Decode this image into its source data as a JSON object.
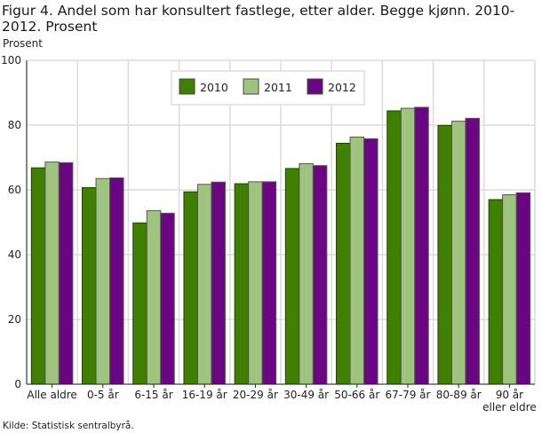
{
  "chart_data": {
    "type": "bar",
    "title": "Figur 4. Andel som har konsultert fastlege, etter alder. Begge kjønn. 2010-2012. Prosent",
    "ylabel": "Prosent",
    "ylim": [
      0,
      100
    ],
    "yticks": [
      0,
      20,
      40,
      60,
      80,
      100
    ],
    "grid": true,
    "legend_position": "top-center",
    "categories": [
      "Alle aldre",
      "0-5 år",
      "6-15 år",
      "16-19 år",
      "20-29 år",
      "30-49 år",
      "50-66 år",
      "67-79 år",
      "80-89 år",
      "90 år\neller eldre"
    ],
    "series": [
      {
        "name": "2010",
        "color": "#3f8000",
        "values": [
          66.8,
          60.7,
          49.8,
          59.4,
          61.9,
          66.6,
          74.4,
          84.4,
          79.9,
          57.0
        ]
      },
      {
        "name": "2011",
        "color": "#9fc47f",
        "values": [
          68.6,
          63.5,
          53.6,
          61.7,
          62.5,
          68.1,
          76.3,
          85.2,
          81.2,
          58.5
        ]
      },
      {
        "name": "2012",
        "color": "#6b0683",
        "values": [
          68.4,
          63.7,
          52.8,
          62.4,
          62.5,
          67.5,
          75.8,
          85.5,
          82.1,
          59.1
        ]
      }
    ],
    "source": "Kilde: Statistisk sentralbyrå."
  }
}
